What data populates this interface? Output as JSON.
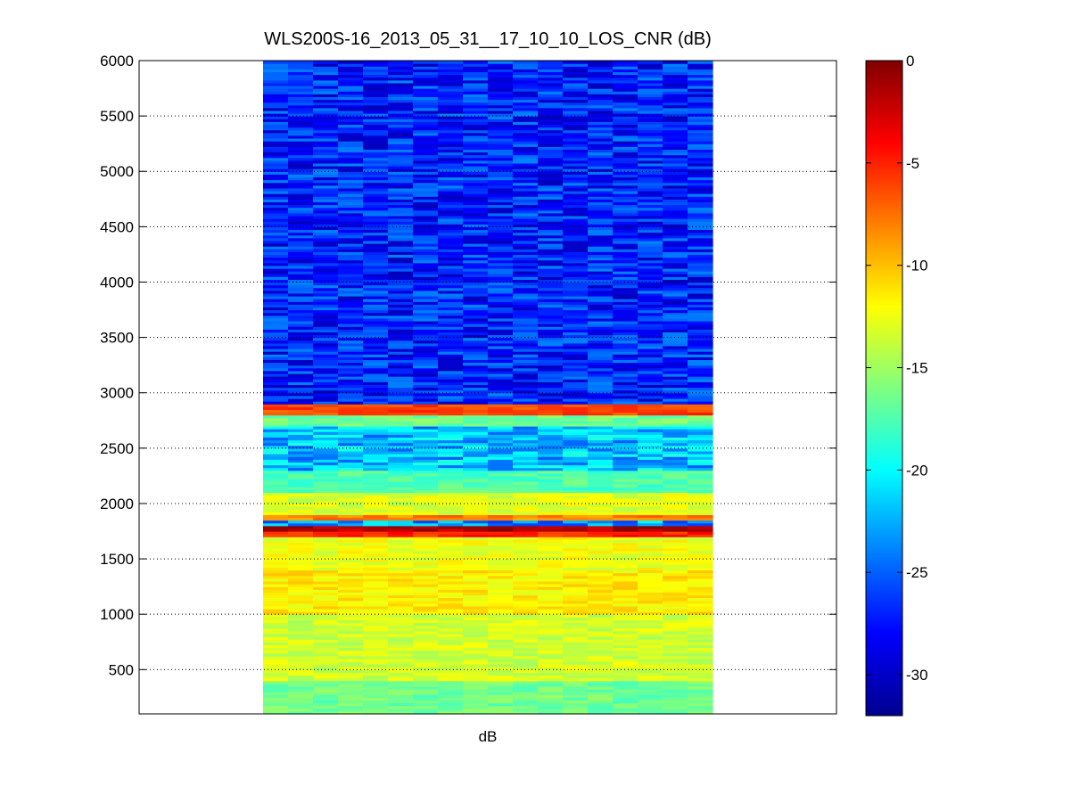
{
  "chart_data": {
    "type": "heatmap",
    "title": "WLS200S-16_2013_05_31__17_10_10_LOS_CNR (dB)",
    "xlabel": "dB",
    "ylabel": "",
    "ylim": [
      100,
      6000
    ],
    "y_ticks": [
      "500",
      "1000",
      "1500",
      "2000",
      "2500",
      "3000",
      "3500",
      "4000",
      "4500",
      "5000",
      "5500",
      "6000"
    ],
    "grid": "horizontal dotted",
    "x_columns": 18,
    "y_start": 100,
    "y_step": 100,
    "colorbar": {
      "colormap": "jet",
      "clim": [
        -32,
        0
      ],
      "ticks": [
        "0",
        "-5",
        "-10",
        "-15",
        "-20",
        "-25",
        "-30"
      ]
    },
    "profile_bands": [
      {
        "from": 100,
        "to": 400,
        "value": -16.5
      },
      {
        "from": 400,
        "to": 1000,
        "value": -13.5
      },
      {
        "from": 1000,
        "to": 1400,
        "value": -11.5
      },
      {
        "from": 1400,
        "to": 1700,
        "value": -12.5
      },
      {
        "from": 1700,
        "to": 1760,
        "value": -5
      },
      {
        "from": 1760,
        "to": 1800,
        "value": -1.5
      },
      {
        "from": 1800,
        "to": 1850,
        "value": -23
      },
      {
        "from": 1850,
        "to": 1900,
        "value": -8
      },
      {
        "from": 1900,
        "to": 2100,
        "value": -13
      },
      {
        "from": 2100,
        "to": 2300,
        "value": -17.5
      },
      {
        "from": 2300,
        "to": 2700,
        "value": -22
      },
      {
        "from": 2700,
        "to": 2800,
        "value": -16.5
      },
      {
        "from": 2800,
        "to": 2900,
        "value": -6
      },
      {
        "from": 2900,
        "to": 6000,
        "value": -27
      }
    ]
  }
}
